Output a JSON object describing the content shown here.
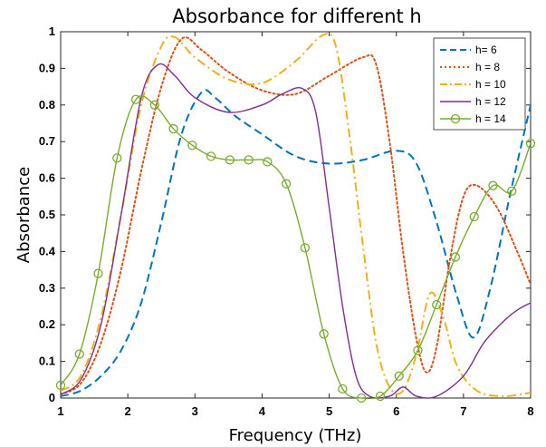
{
  "chart_data": {
    "type": "line",
    "title": "Absorbance for different h",
    "xlabel": "Frequency (THz)",
    "ylabel": "Absorbance",
    "xlim": [
      1,
      8
    ],
    "ylim": [
      0,
      1
    ],
    "xticks": [
      1,
      2,
      3,
      4,
      5,
      6,
      7,
      8
    ],
    "xtick_labels": [
      "1",
      "2",
      "3",
      "4",
      "5",
      "6",
      "7",
      "8"
    ],
    "yticks": [
      0,
      0.1,
      0.2,
      0.3,
      0.4,
      0.5,
      0.6,
      0.7,
      0.8,
      0.9,
      1
    ],
    "ytick_labels": [
      "0",
      "0.1",
      "0.2",
      "0.3",
      "0.4",
      "0.5",
      "0.6",
      "0.7",
      "0.8",
      "0.9",
      "1"
    ],
    "grid": false,
    "legend_position": "top-right",
    "series": [
      {
        "name": "h= 6",
        "color": "#0072BD",
        "style": "dashed",
        "marker": "none",
        "points": [
          [
            1,
            0.005
          ],
          [
            1.3,
            0.02
          ],
          [
            1.6,
            0.06
          ],
          [
            1.9,
            0.13
          ],
          [
            2.2,
            0.26
          ],
          [
            2.5,
            0.48
          ],
          [
            2.8,
            0.72
          ],
          [
            3.1,
            0.835
          ],
          [
            3.3,
            0.82
          ],
          [
            3.6,
            0.77
          ],
          [
            4.0,
            0.72
          ],
          [
            4.5,
            0.66
          ],
          [
            5.0,
            0.64
          ],
          [
            5.5,
            0.65
          ],
          [
            6.0,
            0.675
          ],
          [
            6.3,
            0.64
          ],
          [
            6.6,
            0.48
          ],
          [
            6.9,
            0.28
          ],
          [
            7.15,
            0.165
          ],
          [
            7.4,
            0.3
          ],
          [
            7.7,
            0.56
          ],
          [
            8,
            0.8
          ]
        ]
      },
      {
        "name": "h = 8",
        "color": "#D95319",
        "style": "dotted",
        "marker": "none",
        "points": [
          [
            1,
            0.01
          ],
          [
            1.3,
            0.04
          ],
          [
            1.6,
            0.15
          ],
          [
            1.9,
            0.35
          ],
          [
            2.2,
            0.62
          ],
          [
            2.5,
            0.85
          ],
          [
            2.8,
            0.98
          ],
          [
            3.1,
            0.95
          ],
          [
            3.5,
            0.89
          ],
          [
            4.0,
            0.84
          ],
          [
            4.5,
            0.83
          ],
          [
            5.0,
            0.88
          ],
          [
            5.5,
            0.93
          ],
          [
            5.7,
            0.91
          ],
          [
            5.9,
            0.7
          ],
          [
            6.1,
            0.4
          ],
          [
            6.3,
            0.16
          ],
          [
            6.45,
            0.07
          ],
          [
            6.6,
            0.14
          ],
          [
            6.8,
            0.38
          ],
          [
            7.0,
            0.55
          ],
          [
            7.2,
            0.58
          ],
          [
            7.5,
            0.52
          ],
          [
            7.8,
            0.4
          ],
          [
            8,
            0.31
          ]
        ]
      },
      {
        "name": "h = 10",
        "color": "#EDB120",
        "style": "dashdot",
        "marker": "none",
        "points": [
          [
            1,
            0.02
          ],
          [
            1.3,
            0.06
          ],
          [
            1.6,
            0.22
          ],
          [
            1.9,
            0.5
          ],
          [
            2.2,
            0.8
          ],
          [
            2.5,
            0.96
          ],
          [
            2.7,
            0.985
          ],
          [
            3.0,
            0.93
          ],
          [
            3.5,
            0.87
          ],
          [
            4.0,
            0.86
          ],
          [
            4.5,
            0.92
          ],
          [
            4.9,
            0.99
          ],
          [
            5.1,
            0.96
          ],
          [
            5.3,
            0.72
          ],
          [
            5.5,
            0.42
          ],
          [
            5.7,
            0.15
          ],
          [
            5.9,
            0.03
          ],
          [
            6.1,
            0.02
          ],
          [
            6.3,
            0.12
          ],
          [
            6.5,
            0.285
          ],
          [
            6.7,
            0.22
          ],
          [
            6.9,
            0.09
          ],
          [
            7.2,
            0.02
          ],
          [
            7.6,
            0.005
          ],
          [
            8,
            0.015
          ]
        ]
      },
      {
        "name": "h = 12",
        "color": "#7E2F8E",
        "style": "solid",
        "marker": "none",
        "points": [
          [
            1,
            0.01
          ],
          [
            1.3,
            0.05
          ],
          [
            1.6,
            0.2
          ],
          [
            1.9,
            0.5
          ],
          [
            2.2,
            0.82
          ],
          [
            2.45,
            0.91
          ],
          [
            2.7,
            0.88
          ],
          [
            3.0,
            0.82
          ],
          [
            3.5,
            0.78
          ],
          [
            4.0,
            0.8
          ],
          [
            4.3,
            0.83
          ],
          [
            4.6,
            0.845
          ],
          [
            4.8,
            0.78
          ],
          [
            5.0,
            0.52
          ],
          [
            5.2,
            0.25
          ],
          [
            5.4,
            0.06
          ],
          [
            5.6,
            0.005
          ],
          [
            5.9,
            0.005
          ],
          [
            6.1,
            0.03
          ],
          [
            6.3,
            0.005
          ],
          [
            6.6,
            0.005
          ],
          [
            7.0,
            0.06
          ],
          [
            7.3,
            0.15
          ],
          [
            7.6,
            0.21
          ],
          [
            7.8,
            0.24
          ],
          [
            8,
            0.26
          ]
        ]
      },
      {
        "name": "h = 14",
        "color": "#77AC30",
        "style": "solid",
        "marker": "circle",
        "points": [
          [
            1,
            0.035
          ],
          [
            1.28,
            0.12
          ],
          [
            1.56,
            0.34
          ],
          [
            1.84,
            0.655
          ],
          [
            2.12,
            0.815
          ],
          [
            2.4,
            0.8
          ],
          [
            2.68,
            0.735
          ],
          [
            2.96,
            0.69
          ],
          [
            3.24,
            0.66
          ],
          [
            3.52,
            0.65
          ],
          [
            3.8,
            0.65
          ],
          [
            4.08,
            0.645
          ],
          [
            4.36,
            0.585
          ],
          [
            4.64,
            0.41
          ],
          [
            4.92,
            0.175
          ],
          [
            5.2,
            0.025
          ],
          [
            5.48,
            0.0
          ],
          [
            5.76,
            0.005
          ],
          [
            6.04,
            0.06
          ],
          [
            6.32,
            0.13
          ],
          [
            6.6,
            0.255
          ],
          [
            6.88,
            0.385
          ],
          [
            7.16,
            0.495
          ],
          [
            7.44,
            0.58
          ],
          [
            7.72,
            0.565
          ],
          [
            8,
            0.695
          ]
        ]
      }
    ]
  }
}
